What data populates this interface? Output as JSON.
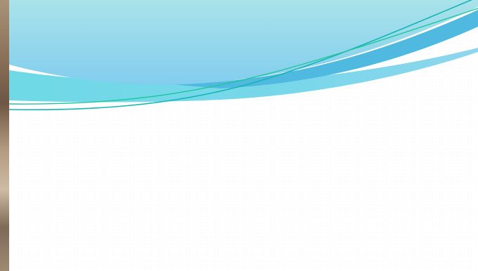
{
  "slide": {
    "theme_colors": {
      "top_band_light": "#a9e3ea",
      "top_band_deep": "#82cdee",
      "secondary_band": "#4fb9e0",
      "lower_band": "#6fd7e6",
      "accent_line_teal": "#17b5b5",
      "accent_line_green": "#1fc7a0",
      "background": "#ffffff"
    },
    "decorations": {
      "left_strip": "photo-strip",
      "header": "wave-bands"
    }
  }
}
